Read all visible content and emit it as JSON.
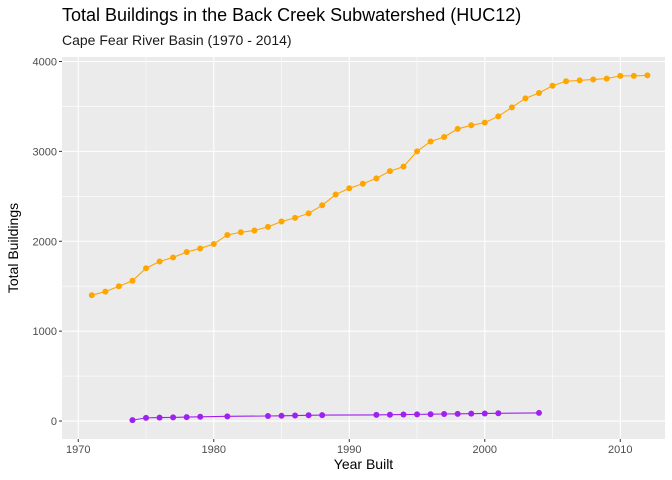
{
  "chart_data": {
    "type": "line",
    "title": "Total Buildings in the Back Creek Subwatershed (HUC12)",
    "subtitle": "Cape Fear River Basin (1970 - 2014)",
    "xlabel": "Year Built",
    "ylabel": "Total Buildings",
    "xlim": [
      1968.8,
      2013.3
    ],
    "ylim": [
      -200,
      4050
    ],
    "x_ticks": [
      1970,
      1980,
      1990,
      2000,
      2010
    ],
    "y_ticks": [
      0,
      1000,
      2000,
      3000,
      4000
    ],
    "grid": true,
    "panel_background": "#ebebeb",
    "grid_color": "#ffffff",
    "series": [
      {
        "color": "#ffa500",
        "x": [
          1971,
          1972,
          1973,
          1974,
          1975,
          1976,
          1977,
          1978,
          1979,
          1980,
          1981,
          1982,
          1983,
          1984,
          1985,
          1986,
          1987,
          1988,
          1989,
          1990,
          1991,
          1992,
          1993,
          1994,
          1995,
          1996,
          1997,
          1998,
          1999,
          2000,
          2001,
          2002,
          2003,
          2004,
          2005,
          2006,
          2007,
          2008,
          2009,
          2010,
          2011,
          2012
        ],
        "y": [
          1400,
          1440,
          1500,
          1560,
          1700,
          1775,
          1820,
          1880,
          1920,
          1970,
          2070,
          2100,
          2120,
          2160,
          2220,
          2260,
          2310,
          2400,
          2520,
          2590,
          2640,
          2700,
          2780,
          2830,
          3000,
          3110,
          3160,
          3250,
          3290,
          3320,
          3390,
          3490,
          3590,
          3650,
          3730,
          3780,
          3790,
          3800,
          3810,
          3840,
          3840,
          3845
        ]
      },
      {
        "color": "#a020f0",
        "x": [
          1974,
          1975,
          1976,
          1977,
          1978,
          1979,
          1981,
          1984,
          1985,
          1986,
          1987,
          1988,
          1992,
          1993,
          1994,
          1995,
          1996,
          1997,
          1998,
          1999,
          2000,
          2001,
          2004
        ],
        "y": [
          10,
          35,
          38,
          40,
          44,
          47,
          52,
          56,
          58,
          61,
          64,
          66,
          68,
          70,
          72,
          74,
          76,
          78,
          80,
          82,
          84,
          86,
          90
        ]
      }
    ]
  }
}
